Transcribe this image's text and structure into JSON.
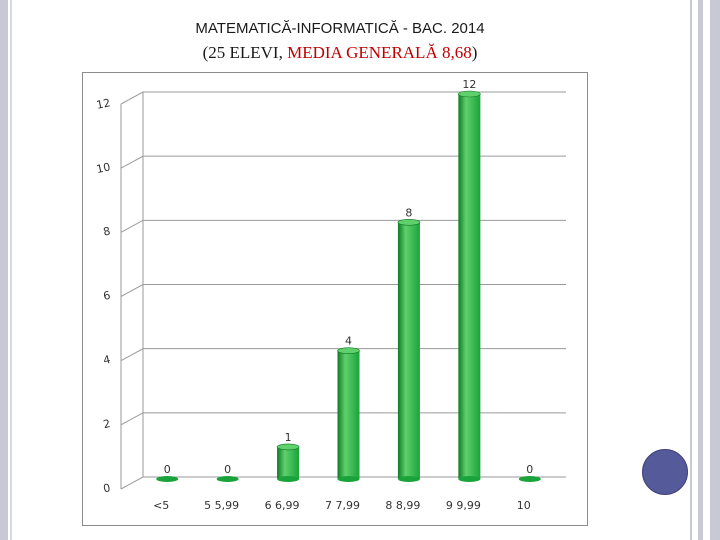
{
  "slide": {
    "title_line1": "MATEMATICĂ-INFORMATICĂ  - BAC. 2014",
    "title_line2_open": "(25 ELEVI, ",
    "title_line2_red": "MEDIA GENERALĂ 8,68",
    "title_line2_close": ")",
    "accent_red": "#c00000",
    "nav_dot_color": "#545a9a"
  },
  "chart_data": {
    "type": "bar",
    "title": "",
    "xlabel": "",
    "ylabel": "",
    "categories": [
      "<5",
      "5 5,99",
      "6 6,99",
      "7 7,99",
      "8 8,99",
      "9 9,99",
      "10"
    ],
    "values": [
      0,
      0,
      1,
      4,
      8,
      12,
      0
    ],
    "data_labels": [
      "0",
      "0",
      "1",
      "4",
      "8",
      "12",
      "0"
    ],
    "ylim": [
      0,
      12
    ],
    "yticks": [
      0,
      2,
      4,
      6,
      8,
      10,
      12
    ],
    "ytick_labels": [
      "0",
      "2",
      "4",
      "6",
      "8",
      "10",
      "12"
    ],
    "grid": true,
    "bar_color": "#1aa33a",
    "bar_color_light": "#5fd06c",
    "bar_color_dark": "#0d7a25",
    "style": "3d-cylinder"
  }
}
